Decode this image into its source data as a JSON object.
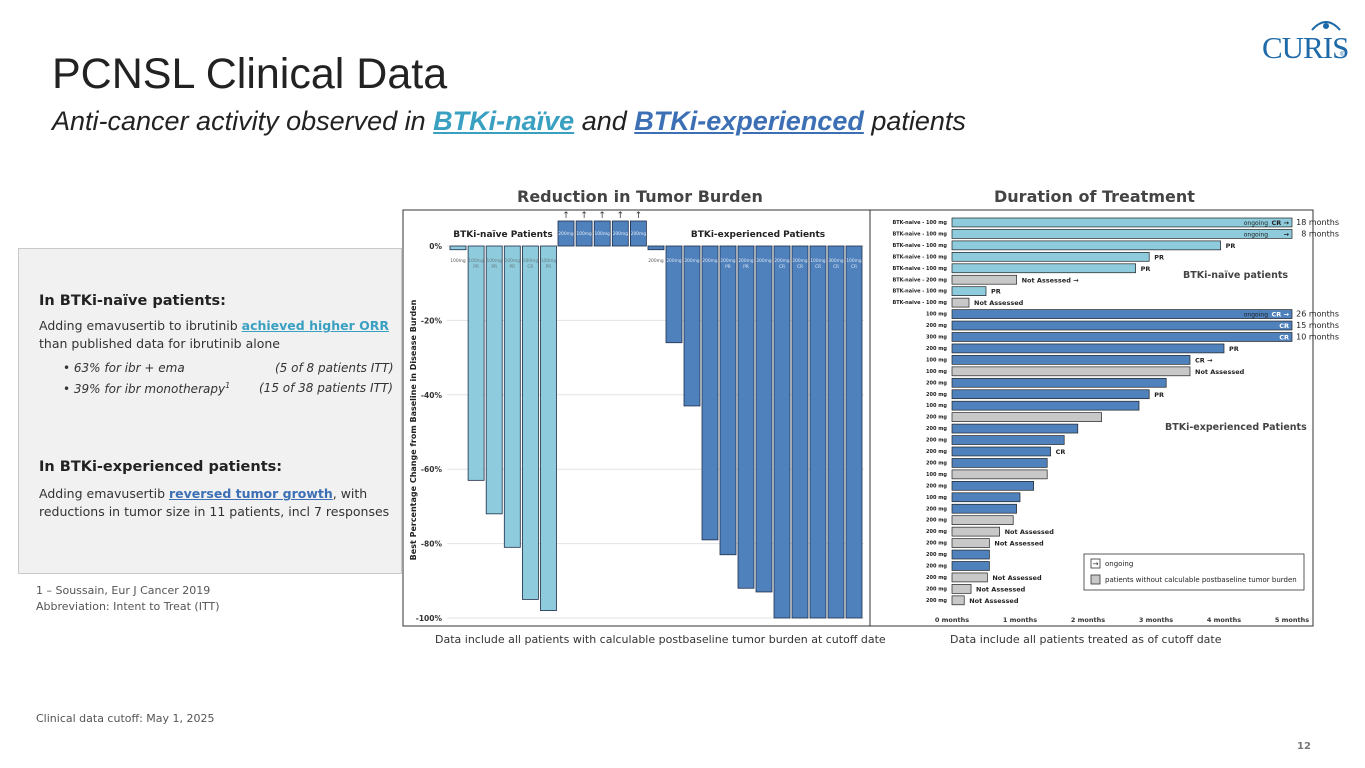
{
  "header": {
    "title": "PCNSL Clinical Data",
    "subtitle_pre": "Anti-cancer activity observed in ",
    "subtitle_k1": "BTKi-naïve",
    "subtitle_mid": " and ",
    "subtitle_k2": "BTKi-experienced",
    "subtitle_post": " patients",
    "logo_text": "CURIS",
    "logo_reg": "®"
  },
  "panel": {
    "naive_heading": "In BTKi-naïve patients:",
    "naive_text_pre": "Adding emavusertib to ibrutinib ",
    "naive_text_link": "achieved higher ORR",
    "naive_text_post": " than published data for ibrutinib alone",
    "bullet1_a": "• 63% for ibr + ema",
    "bullet1_b": "(5 of 8 patients ITT)",
    "bullet2_a": "• 39% for ibr monotherapy",
    "bullet2_sup": "1",
    "bullet2_b": "(15 of 38 patients ITT)",
    "exp_heading": "In BTKi-experienced patients:",
    "exp_text_pre": "Adding emavusertib ",
    "exp_text_link": "reversed tumor growth",
    "exp_text_post": ", with reductions in tumor size in 11 patients, incl 7 responses"
  },
  "footnotes": {
    "ref": "1 – Soussain, Eur J Cancer 2019",
    "abbr": "Abbreviation: Intent to Treat (ITT)",
    "cutoff": "Clinical data cutoff:  May 1, 2025",
    "page": "12"
  },
  "colors": {
    "naive": "#8ecbdc",
    "experienced": "#4f81bd",
    "assessed": "#c8c8c8",
    "accent1": "#3aa0c2",
    "accent2": "#3d6fb5"
  },
  "chart_data": [
    {
      "type": "bar",
      "title": "Reduction in Tumor Burden",
      "ylabel": "Best Percentage Change from Baseline in Disease Burden",
      "ylim": [
        -100,
        0
      ],
      "yticks": [
        "0%",
        "-20%",
        "-40%",
        "-60%",
        "-80%",
        "-100%"
      ],
      "group_labels": [
        "BTKi-naïve Patients",
        "BTKi-experienced Patients"
      ],
      "caption": "Data include all patients with calculable postbaseline tumor burden at cutoff date",
      "naive_bars": [
        {
          "dose": "100mg",
          "value": -1,
          "resp": ""
        },
        {
          "dose": "100mg",
          "value": -63,
          "resp": "PR"
        },
        {
          "dose": "100mg",
          "value": -72,
          "resp": "PR"
        },
        {
          "dose": "100mg",
          "value": -81,
          "resp": "PR"
        },
        {
          "dose": "100mg",
          "value": -95,
          "resp": "CR"
        },
        {
          "dose": "100mg",
          "value": -98,
          "resp": "PR"
        }
      ],
      "increase_bars": [
        {
          "dose": "200mg",
          "arrow": "↑"
        },
        {
          "dose": "100mg",
          "arrow": "↑"
        },
        {
          "dose": "100mg",
          "arrow": "↑"
        },
        {
          "dose": "200mg",
          "arrow": "↑"
        },
        {
          "dose": "200mg",
          "arrow": "↑"
        }
      ],
      "exp_bars": [
        {
          "dose": "200mg",
          "value": -1,
          "resp": ""
        },
        {
          "dose": "200mg",
          "value": -26,
          "resp": ""
        },
        {
          "dose": "200mg",
          "value": -43,
          "resp": ""
        },
        {
          "dose": "200mg",
          "value": -79,
          "resp": ""
        },
        {
          "dose": "200mg",
          "value": -83,
          "resp": "PR"
        },
        {
          "dose": "200mg",
          "value": -92,
          "resp": "PR"
        },
        {
          "dose": "200mg",
          "value": -93,
          "resp": ""
        },
        {
          "dose": "200mg",
          "value": -100,
          "resp": "CR"
        },
        {
          "dose": "200mg",
          "value": -100,
          "resp": "CR"
        },
        {
          "dose": "100mg",
          "value": -100,
          "resp": "CR"
        },
        {
          "dose": "300mg",
          "value": -100,
          "resp": "CR"
        },
        {
          "dose": "100mg",
          "value": -100,
          "resp": "CR"
        }
      ]
    },
    {
      "type": "bar",
      "title": "Duration of Treatment",
      "xlim": [
        0,
        5
      ],
      "xticks": [
        "0 months",
        "1 months",
        "2 months",
        "3 months",
        "4 months",
        "5 months"
      ],
      "caption": "Data include all patients treated as of cutoff date",
      "group_labels": [
        "BTKi-naïve patients",
        "BTKi-experienced Patients"
      ],
      "legend": [
        "ongoing",
        "patients without calculable postbaseline tumor burden"
      ],
      "arrow_glyph": "→",
      "rows": [
        {
          "label": "BTK-naïve - 100 mg",
          "months": 5.0,
          "kind": "naive",
          "note": "CR →",
          "ongoing": "ongoing",
          "right": "18 months"
        },
        {
          "label": "BTK-naïve - 100 mg",
          "months": 5.0,
          "kind": "naive",
          "note": "→",
          "ongoing": "ongoing",
          "right": "8 months"
        },
        {
          "label": "BTK-naïve - 100 mg",
          "months": 3.95,
          "kind": "naive",
          "note": "PR",
          "ongoing": "",
          "right": ""
        },
        {
          "label": "BTK-naïve - 100 mg",
          "months": 2.9,
          "kind": "naive",
          "note": "PR",
          "ongoing": "",
          "right": ""
        },
        {
          "label": "BTK-naïve - 100 mg",
          "months": 2.7,
          "kind": "naive",
          "note": "PR",
          "ongoing": "",
          "right": ""
        },
        {
          "label": "BTK-naïve - 200 mg",
          "months": 0.95,
          "kind": "assessed",
          "note": "Not Assessed →",
          "ongoing": "",
          "right": ""
        },
        {
          "label": "BTK-naïve - 100 mg",
          "months": 0.5,
          "kind": "naive",
          "note": "PR",
          "ongoing": "",
          "right": ""
        },
        {
          "label": "BTK-naïve - 100 mg",
          "months": 0.25,
          "kind": "assessed",
          "note": "Not Assessed",
          "ongoing": "",
          "right": ""
        },
        {
          "label": "100 mg",
          "months": 5.0,
          "kind": "exp",
          "note": "CR →",
          "ongoing": "ongoing",
          "right": "26 months"
        },
        {
          "label": "200 mg",
          "months": 5.0,
          "kind": "exp",
          "note": "CR",
          "ongoing": "",
          "right": "15 months"
        },
        {
          "label": "300 mg",
          "months": 5.0,
          "kind": "exp",
          "note": "CR",
          "ongoing": "",
          "right": "10 months"
        },
        {
          "label": "200 mg",
          "months": 4.0,
          "kind": "exp",
          "note": "PR",
          "ongoing": "",
          "right": ""
        },
        {
          "label": "100 mg",
          "months": 3.5,
          "kind": "exp",
          "note": "CR →",
          "ongoing": "",
          "right": ""
        },
        {
          "label": "100 mg",
          "months": 3.5,
          "kind": "assessed",
          "note": "Not Assessed",
          "ongoing": "",
          "right": ""
        },
        {
          "label": "200 mg",
          "months": 3.15,
          "kind": "exp",
          "note": "",
          "ongoing": "",
          "right": ""
        },
        {
          "label": "200 mg",
          "months": 2.9,
          "kind": "exp",
          "note": "PR",
          "ongoing": "",
          "right": ""
        },
        {
          "label": "100 mg",
          "months": 2.75,
          "kind": "exp",
          "note": "",
          "ongoing": "",
          "right": ""
        },
        {
          "label": "200 mg",
          "months": 2.2,
          "kind": "assessed",
          "note": "",
          "ongoing": "",
          "right": ""
        },
        {
          "label": "200 mg",
          "months": 1.85,
          "kind": "exp",
          "note": "",
          "ongoing": "",
          "right": ""
        },
        {
          "label": "200 mg",
          "months": 1.65,
          "kind": "exp",
          "note": "",
          "ongoing": "",
          "right": ""
        },
        {
          "label": "200 mg",
          "months": 1.45,
          "kind": "exp",
          "note": "CR",
          "ongoing": "",
          "right": ""
        },
        {
          "label": "200 mg",
          "months": 1.4,
          "kind": "exp",
          "note": "",
          "ongoing": "",
          "right": ""
        },
        {
          "label": "100 mg",
          "months": 1.4,
          "kind": "assessed",
          "note": "",
          "ongoing": "",
          "right": ""
        },
        {
          "label": "200 mg",
          "months": 1.2,
          "kind": "exp",
          "note": "",
          "ongoing": "",
          "right": ""
        },
        {
          "label": "100 mg",
          "months": 1.0,
          "kind": "exp",
          "note": "",
          "ongoing": "",
          "right": ""
        },
        {
          "label": "200 mg",
          "months": 0.95,
          "kind": "exp",
          "note": "",
          "ongoing": "",
          "right": ""
        },
        {
          "label": "200 mg",
          "months": 0.9,
          "kind": "assessed",
          "note": "",
          "ongoing": "",
          "right": ""
        },
        {
          "label": "200 mg",
          "months": 0.7,
          "kind": "assessed",
          "note": "Not Assessed",
          "ongoing": "",
          "right": ""
        },
        {
          "label": "200 mg",
          "months": 0.55,
          "kind": "assessed",
          "note": "Not Assessed",
          "ongoing": "",
          "right": ""
        },
        {
          "label": "200 mg",
          "months": 0.55,
          "kind": "exp",
          "note": "",
          "ongoing": "",
          "right": ""
        },
        {
          "label": "200 mg",
          "months": 0.55,
          "kind": "exp",
          "note": "",
          "ongoing": "",
          "right": ""
        },
        {
          "label": "200 mg",
          "months": 0.52,
          "kind": "assessed",
          "note": "Not Assessed",
          "ongoing": "",
          "right": ""
        },
        {
          "label": "200 mg",
          "months": 0.28,
          "kind": "assessed",
          "note": "Not Assessed",
          "ongoing": "",
          "right": ""
        },
        {
          "label": "200 mg",
          "months": 0.18,
          "kind": "assessed",
          "note": "Not Assessed",
          "ongoing": "",
          "right": ""
        }
      ]
    }
  ]
}
